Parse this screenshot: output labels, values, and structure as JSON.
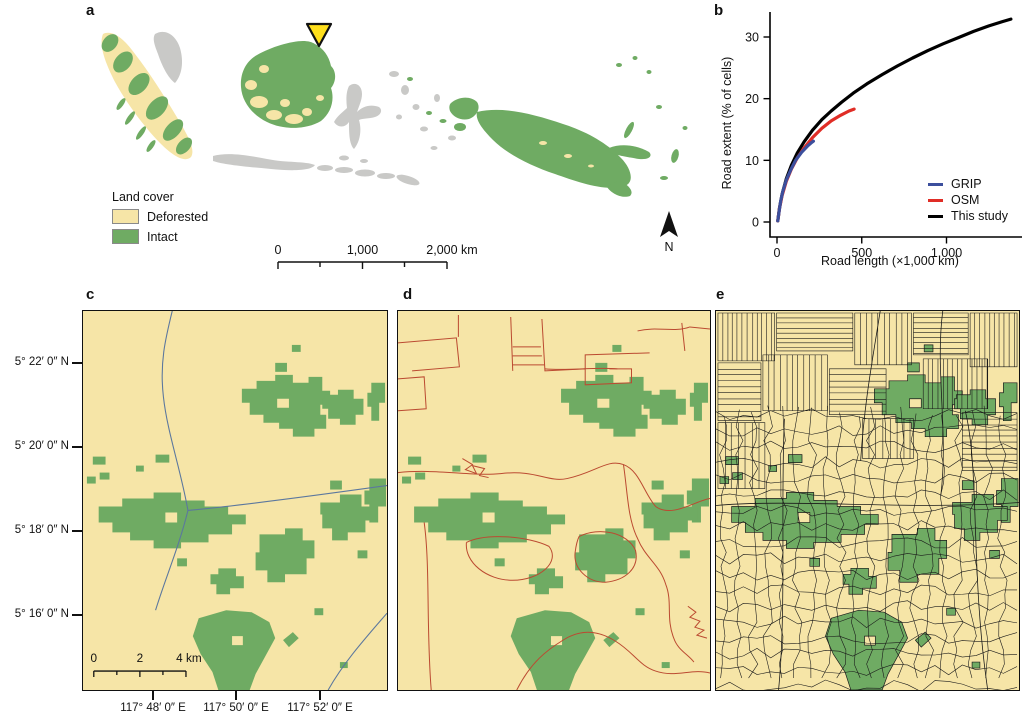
{
  "colors": {
    "deforested": "#f6e5a7",
    "intact": "#6fab63",
    "unmapped": "#c9c9c7",
    "marker_yellow": "#ffdf1c",
    "grip_blue": "#3c4f9d",
    "osm_red": "#e02d26",
    "study_black": "#000000",
    "map_blue_line": "#5b779e",
    "map_red_line": "#bb4a31",
    "map_black_line": "#1a1a1a"
  },
  "panel_labels": {
    "a": "a",
    "b": "b",
    "c": "c",
    "d": "d",
    "e": "e"
  },
  "panel_a": {
    "legend_title": "Land cover",
    "legend_items": [
      {
        "label": "Deforested"
      },
      {
        "label": "Intact"
      }
    ],
    "scalebar_labels": {
      "t0": "0",
      "t1": "1,000",
      "t2": "2,000 km"
    },
    "north_label": "N"
  },
  "chart_data": {
    "type": "line",
    "title": "",
    "xlabel": "Road length (×1,000 km)",
    "ylabel": "Road extent (% of cells)",
    "xlim": [
      0,
      1450
    ],
    "ylim": [
      0,
      34
    ],
    "grid": false,
    "legend_position": "lower right",
    "xticks": [
      {
        "v": 0,
        "label": "0"
      },
      {
        "v": 500,
        "label": "500"
      },
      {
        "v": 1000,
        "label": "1,000"
      }
    ],
    "yticks": [
      {
        "v": 0,
        "label": "0"
      },
      {
        "v": 10,
        "label": "10"
      },
      {
        "v": 20,
        "label": "20"
      },
      {
        "v": 30,
        "label": "30"
      }
    ],
    "series": [
      {
        "name": "This study",
        "color_key": "study_black",
        "points": [
          [
            5,
            0.2
          ],
          [
            15,
            2.3
          ],
          [
            30,
            4.5
          ],
          [
            55,
            7.0
          ],
          [
            85,
            9.2
          ],
          [
            120,
            11.2
          ],
          [
            160,
            13.0
          ],
          [
            210,
            14.9
          ],
          [
            265,
            16.6
          ],
          [
            320,
            18.0
          ],
          [
            380,
            19.4
          ],
          [
            450,
            20.9
          ],
          [
            530,
            22.4
          ],
          [
            620,
            23.9
          ],
          [
            710,
            25.3
          ],
          [
            800,
            26.6
          ],
          [
            890,
            27.8
          ],
          [
            980,
            28.9
          ],
          [
            1070,
            29.9
          ],
          [
            1160,
            30.9
          ],
          [
            1250,
            31.8
          ],
          [
            1330,
            32.5
          ],
          [
            1380,
            32.9
          ]
        ]
      },
      {
        "name": "OSM",
        "color_key": "osm_red",
        "points": [
          [
            5,
            0.2
          ],
          [
            15,
            2.2
          ],
          [
            30,
            4.3
          ],
          [
            55,
            6.6
          ],
          [
            85,
            8.6
          ],
          [
            120,
            10.4
          ],
          [
            160,
            12.0
          ],
          [
            210,
            13.7
          ],
          [
            265,
            15.2
          ],
          [
            320,
            16.4
          ],
          [
            375,
            17.3
          ],
          [
            425,
            18.0
          ],
          [
            455,
            18.3
          ]
        ]
      },
      {
        "name": "GRIP",
        "color_key": "grip_blue",
        "points": [
          [
            5,
            0.2
          ],
          [
            12,
            1.6
          ],
          [
            22,
            3.4
          ],
          [
            35,
            5.0
          ],
          [
            55,
            6.8
          ],
          [
            80,
            8.4
          ],
          [
            110,
            10.0
          ],
          [
            145,
            11.3
          ],
          [
            180,
            12.3
          ],
          [
            205,
            12.9
          ],
          [
            215,
            13.1
          ]
        ]
      }
    ],
    "legend_order": [
      "GRIP",
      "OSM",
      "This study"
    ],
    "legend_color_keys": [
      "grip_blue",
      "osm_red",
      "study_black"
    ]
  },
  "panel_c": {
    "lat_labels": [
      "5° 22′ 0″ N",
      "5° 20′ 0″ N",
      "5° 18′ 0″ N",
      "5° 16′ 0″ N"
    ],
    "lon_labels": [
      "117° 48′ 0″ E",
      "117° 50′ 0″ E",
      "117° 52′ 0″ E"
    ],
    "scalebar_labels": {
      "t0": "0",
      "t1": "2",
      "t2": "4 km"
    }
  }
}
